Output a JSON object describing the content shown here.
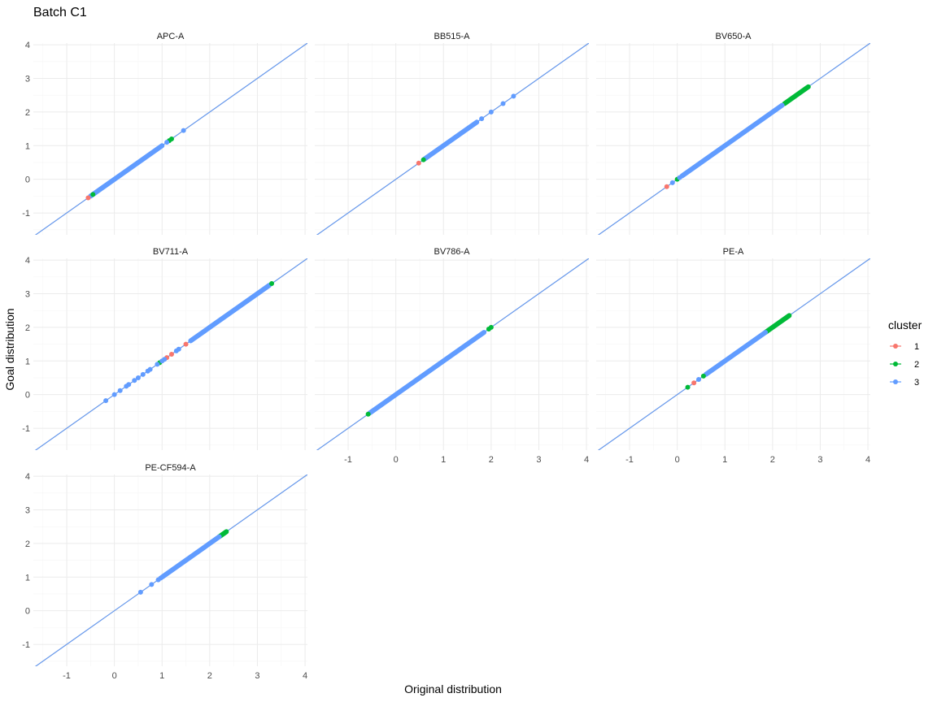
{
  "chart_data": {
    "type": "scatter",
    "title": "Batch C1",
    "xlabel": "Original distribution",
    "ylabel": "Goal distribution",
    "x_ticks": [
      -1,
      0,
      1,
      2,
      3,
      4
    ],
    "y_ticks": [
      -1,
      0,
      1,
      2,
      3,
      4
    ],
    "xlim": [
      -1.7,
      4.05
    ],
    "ylim": [
      -1.65,
      4.05
    ],
    "grid": true,
    "reference_line": "y = x",
    "legend": {
      "title": "cluster",
      "position": "right",
      "entries": [
        {
          "name": "1",
          "color": "#F8766D"
        },
        {
          "name": "2",
          "color": "#00BA38"
        },
        {
          "name": "3",
          "color": "#619CFF"
        }
      ]
    },
    "panels": [
      {
        "label": "APC-A",
        "series": [
          {
            "name": "1",
            "color": "#F8766D",
            "segments": [],
            "points": [
              [
                -0.55,
                -0.55
              ]
            ]
          },
          {
            "name": "2",
            "color": "#00BA38",
            "segments": [],
            "points": [
              [
                -0.45,
                -0.45
              ],
              [
                1.15,
                1.15
              ],
              [
                1.2,
                1.2
              ]
            ]
          },
          {
            "name": "3",
            "color": "#619CFF",
            "segments": [
              [
                -0.5,
                1.0
              ]
            ],
            "points": [
              [
                1.1,
                1.1
              ],
              [
                1.45,
                1.45
              ]
            ]
          }
        ]
      },
      {
        "label": "BB515-A",
        "series": [
          {
            "name": "1",
            "color": "#F8766D",
            "segments": [],
            "points": [
              [
                0.48,
                0.48
              ]
            ]
          },
          {
            "name": "2",
            "color": "#00BA38",
            "segments": [],
            "points": [
              [
                0.58,
                0.58
              ]
            ]
          },
          {
            "name": "3",
            "color": "#619CFF",
            "segments": [
              [
                0.6,
                1.7
              ]
            ],
            "points": [
              [
                1.8,
                1.8
              ],
              [
                2.0,
                2.0
              ],
              [
                2.25,
                2.25
              ],
              [
                2.47,
                2.47
              ]
            ]
          }
        ]
      },
      {
        "label": "BV650-A",
        "series": [
          {
            "name": "1",
            "color": "#F8766D",
            "segments": [],
            "points": [
              [
                -0.22,
                -0.22
              ]
            ]
          },
          {
            "name": "2",
            "color": "#00BA38",
            "segments": [
              [
                2.25,
                2.75
              ]
            ],
            "points": [
              [
                0.0,
                0.0
              ]
            ]
          },
          {
            "name": "3",
            "color": "#619CFF",
            "segments": [
              [
                0.1,
                2.2
              ]
            ],
            "points": [
              [
                -0.1,
                -0.1
              ],
              [
                0.05,
                0.05
              ]
            ]
          }
        ]
      },
      {
        "label": "BV711-A",
        "series": [
          {
            "name": "1",
            "color": "#F8766D",
            "segments": [],
            "points": [
              [
                1.1,
                1.1
              ],
              [
                1.2,
                1.2
              ],
              [
                1.5,
                1.5
              ]
            ]
          },
          {
            "name": "2",
            "color": "#00BA38",
            "segments": [],
            "points": [
              [
                0.95,
                0.95
              ],
              [
                3.3,
                3.3
              ]
            ]
          },
          {
            "name": "3",
            "color": "#619CFF",
            "segments": [
              [
                1.6,
                3.25
              ]
            ],
            "points": [
              [
                -0.18,
                -0.18
              ],
              [
                0.0,
                0.0
              ],
              [
                0.12,
                0.12
              ],
              [
                0.25,
                0.25
              ],
              [
                0.3,
                0.3
              ],
              [
                0.42,
                0.42
              ],
              [
                0.5,
                0.5
              ],
              [
                0.6,
                0.6
              ],
              [
                0.7,
                0.7
              ],
              [
                0.75,
                0.75
              ],
              [
                0.9,
                0.9
              ],
              [
                1.0,
                1.0
              ],
              [
                1.05,
                1.05
              ],
              [
                1.3,
                1.3
              ],
              [
                1.35,
                1.35
              ]
            ]
          }
        ]
      },
      {
        "label": "BV786-A",
        "series": [
          {
            "name": "1",
            "color": "#F8766D",
            "segments": [],
            "points": []
          },
          {
            "name": "2",
            "color": "#00BA38",
            "segments": [],
            "points": [
              [
                -0.58,
                -0.58
              ],
              [
                1.95,
                1.95
              ],
              [
                2.0,
                2.0
              ]
            ]
          },
          {
            "name": "3",
            "color": "#619CFF",
            "segments": [
              [
                -0.55,
                1.85
              ]
            ],
            "points": []
          }
        ]
      },
      {
        "label": "PE-A",
        "series": [
          {
            "name": "1",
            "color": "#F8766D",
            "segments": [],
            "points": [
              [
                0.35,
                0.35
              ]
            ]
          },
          {
            "name": "2",
            "color": "#00BA38",
            "segments": [
              [
                1.85,
                2.35
              ]
            ],
            "points": [
              [
                0.22,
                0.22
              ],
              [
                0.55,
                0.55
              ]
            ]
          },
          {
            "name": "3",
            "color": "#619CFF",
            "segments": [
              [
                0.6,
                1.85
              ]
            ],
            "points": [
              [
                0.45,
                0.45
              ]
            ]
          }
        ]
      },
      {
        "label": "PE-CF594-A",
        "series": [
          {
            "name": "1",
            "color": "#F8766D",
            "segments": [],
            "points": []
          },
          {
            "name": "2",
            "color": "#00BA38",
            "segments": [
              [
                2.2,
                2.35
              ]
            ],
            "points": []
          },
          {
            "name": "3",
            "color": "#619CFF",
            "segments": [
              [
                1.0,
                2.2
              ]
            ],
            "points": [
              [
                0.55,
                0.55
              ],
              [
                0.78,
                0.78
              ],
              [
                0.92,
                0.92
              ],
              [
                0.97,
                0.97
              ]
            ]
          }
        ]
      }
    ]
  }
}
